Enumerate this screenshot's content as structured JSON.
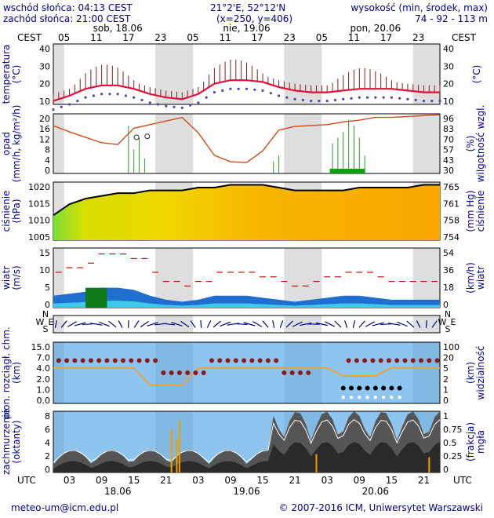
{
  "header": {
    "sunrise": "wschód słońca: 04:13 CEST",
    "sunset": "zachód słońca: 21:00 CEST",
    "coords": "21°2'E, 52°12'N",
    "grid": "(x=250,  y=406)",
    "elev_label": "wysokość (min, środek, max)",
    "elev_values": "74 - 92 - 113 m"
  },
  "time_axis": {
    "tz_top": "CEST",
    "tz_bottom": "UTC",
    "days_top": [
      "sob, 18.06",
      "nie, 19.06",
      "pon, 20.06"
    ],
    "hours_top": [
      "05",
      "11",
      "17",
      "23",
      "05",
      "11",
      "17",
      "23",
      "05",
      "11",
      "17",
      "23"
    ],
    "hours_bottom": [
      "03",
      "09",
      "15",
      "21",
      "03",
      "09",
      "15",
      "21",
      "03",
      "09",
      "15",
      "21"
    ],
    "dates_bottom": [
      "18.06",
      "19.06",
      "20.06"
    ]
  },
  "panels": {
    "temperature": {
      "left_label": "temperatura",
      "left_unit": "(°C)",
      "right_unit": "(°C)",
      "left_ticks": [
        "40",
        "30",
        "20",
        "10"
      ],
      "right_ticks": [
        "40",
        "30",
        "20",
        "10"
      ]
    },
    "precip": {
      "left_label": "opad",
      "left_unit": "(mm/h, kg/m²/h)",
      "right_label": "wilgotność wzgl.",
      "right_unit": "(%)",
      "left_ticks": [
        "20",
        "16",
        "12",
        "8",
        "4",
        "0"
      ],
      "right_ticks": [
        "96",
        "83",
        "70",
        "57",
        "43",
        "30"
      ]
    },
    "pressure": {
      "left_label": "ciśnienie",
      "left_unit": "(hPa)",
      "right_label": "ciśnienie",
      "right_unit": "(mm Hg)",
      "left_ticks": [
        "1020",
        "1015",
        "1010",
        "1005"
      ],
      "right_ticks": [
        "765",
        "761",
        "758",
        "754"
      ]
    },
    "wind": {
      "left_label": "wiatr",
      "left_unit": "(m/s)",
      "right_label": "wiatr",
      "right_unit": "(km/h)",
      "left_ticks": [
        "15",
        "10",
        "5",
        "0"
      ],
      "right_ticks": [
        "54",
        "36",
        "18",
        "0"
      ]
    },
    "wind_dir": {
      "letters": [
        "N",
        "W",
        "E",
        "S"
      ]
    },
    "visibility": {
      "left_label": "pion. rozciągł. chm.",
      "left_unit": "(km)",
      "right_label": "widzialność",
      "right_unit": "(km)",
      "left_ticks": [
        "15.0",
        "7.0",
        "4.0",
        "2.0",
        "1.0",
        "0.0"
      ],
      "right_ticks": [
        "100",
        "20",
        "5",
        "2",
        "1",
        "0"
      ]
    },
    "cloud": {
      "left_label": "zachmurzenie",
      "left_unit": "(oktanty)",
      "right_label": "mgła",
      "right_unit": "(frakcja)",
      "left_ticks": [
        "8",
        "6",
        "4",
        "2",
        "0"
      ],
      "right_ticks": [
        "1",
        "0.75",
        "0.5",
        "0.25",
        "0"
      ]
    }
  },
  "chart_data": {
    "type": "line",
    "x_hours_utc": [
      0,
      3,
      6,
      9,
      12,
      15,
      18,
      21,
      24,
      27,
      30,
      33,
      36,
      39,
      42,
      45,
      48,
      51,
      54,
      57,
      60,
      63,
      66,
      69,
      72
    ],
    "series": [
      {
        "name": "temperatura",
        "values": [
          12,
          15,
          19,
          21,
          21,
          19,
          16,
          14,
          13,
          16,
          22,
          24,
          24,
          23,
          20,
          18,
          17,
          17,
          18,
          19,
          19,
          19,
          18,
          17,
          17
        ]
      },
      {
        "name": "ciśnienie",
        "values": [
          1010,
          1014,
          1016,
          1017,
          1018,
          1018,
          1019,
          1019,
          1019,
          1020,
          1020,
          1021,
          1021,
          1021,
          1020,
          1019,
          1019,
          1019,
          1019,
          1020,
          1020,
          1020,
          1020,
          1021,
          1021
        ]
      },
      {
        "name": "wilgotność wzgl.",
        "values": [
          83,
          76,
          70,
          64,
          62,
          80,
          84,
          88,
          92,
          75,
          50,
          43,
          42,
          55,
          78,
          82,
          83,
          84,
          87,
          89,
          92,
          92,
          93,
          94,
          95
        ]
      },
      {
        "name": "wiatr",
        "values": [
          3,
          3.5,
          4,
          5,
          5,
          4.5,
          3,
          2,
          1.5,
          2,
          3,
          3,
          3,
          2.5,
          2,
          1.5,
          2,
          2.5,
          3,
          3,
          2.5,
          2,
          2,
          2,
          2
        ]
      }
    ],
    "ylim_temperature": [
      10,
      45
    ],
    "ylim_pressure": [
      1001,
      1022
    ],
    "ylim_humidity": [
      30,
      96
    ],
    "ylim_wind": [
      0,
      15
    ]
  },
  "footer": {
    "email": "meteo-um@icm.edu.pl",
    "copyright": "© 2007-2016 ICM, Uniwersytet Warszawski"
  }
}
